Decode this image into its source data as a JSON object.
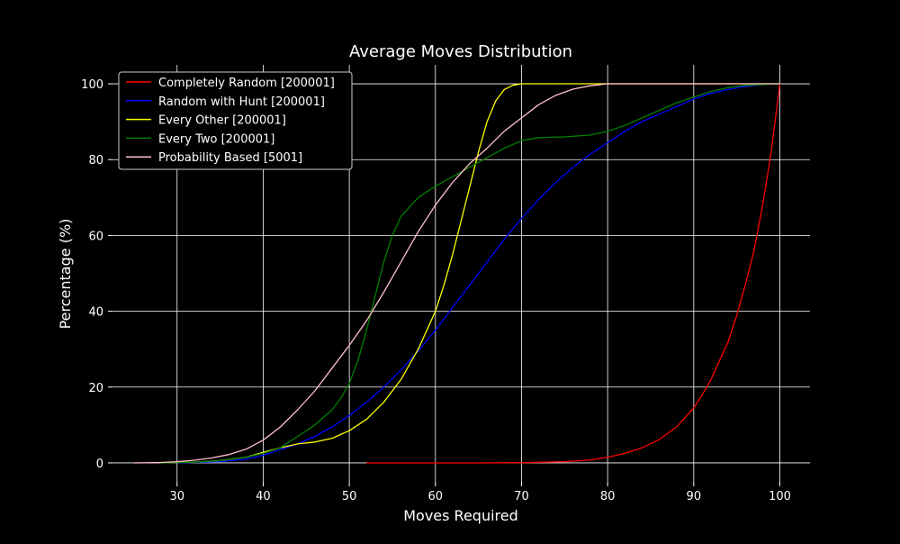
{
  "chart_data": {
    "type": "line",
    "title": "Average Moves Distribution",
    "xlabel": "Moves Required",
    "ylabel": "Percentage (%)",
    "xlim": [
      22.5,
      103.5
    ],
    "ylim": [
      -5,
      105
    ],
    "xticks": [
      30,
      40,
      50,
      60,
      70,
      80,
      90,
      100
    ],
    "yticks": [
      0,
      20,
      40,
      60,
      80,
      100
    ],
    "grid": true,
    "legend_position": "upper-left",
    "background": "#000000",
    "foreground": "#ffffff",
    "series": [
      {
        "name": "Completely Random [200001]",
        "color": "#ff0000",
        "points": [
          [
            52,
            0
          ],
          [
            60,
            0
          ],
          [
            65,
            0
          ],
          [
            70,
            0.05
          ],
          [
            75,
            0.3
          ],
          [
            78,
            0.8
          ],
          [
            80,
            1.5
          ],
          [
            82,
            2.5
          ],
          [
            84,
            4
          ],
          [
            86,
            6.2
          ],
          [
            88,
            9.5
          ],
          [
            89,
            12
          ],
          [
            90,
            14.5
          ],
          [
            91,
            18
          ],
          [
            92,
            22
          ],
          [
            93,
            27
          ],
          [
            94,
            32
          ],
          [
            95,
            39
          ],
          [
            96,
            47
          ],
          [
            97,
            56
          ],
          [
            98,
            68
          ],
          [
            99,
            82
          ],
          [
            100,
            100
          ]
        ]
      },
      {
        "name": "Random with Hunt [200001]",
        "color": "#0000ff",
        "points": [
          [
            30,
            0
          ],
          [
            35,
            0.3
          ],
          [
            38,
            1
          ],
          [
            40,
            2
          ],
          [
            42,
            3.5
          ],
          [
            44,
            5
          ],
          [
            46,
            7
          ],
          [
            48,
            9.5
          ],
          [
            50,
            12.5
          ],
          [
            52,
            16
          ],
          [
            54,
            20
          ],
          [
            56,
            24.5
          ],
          [
            58,
            29.5
          ],
          [
            60,
            35
          ],
          [
            62,
            41
          ],
          [
            64,
            47
          ],
          [
            66,
            53
          ],
          [
            68,
            59
          ],
          [
            70,
            64.5
          ],
          [
            72,
            69.5
          ],
          [
            74,
            74
          ],
          [
            76,
            78
          ],
          [
            78,
            81.5
          ],
          [
            80,
            84.5
          ],
          [
            82,
            87.5
          ],
          [
            84,
            90
          ],
          [
            86,
            92
          ],
          [
            88,
            94
          ],
          [
            90,
            96
          ],
          [
            92,
            97.5
          ],
          [
            94,
            98.5
          ],
          [
            96,
            99.3
          ],
          [
            98,
            99.8
          ],
          [
            100,
            100
          ]
        ]
      },
      {
        "name": "Every Other [200001]",
        "color": "#ffff00",
        "points": [
          [
            28,
            0
          ],
          [
            32,
            0.2
          ],
          [
            35,
            0.6
          ],
          [
            38,
            1.5
          ],
          [
            40,
            2.8
          ],
          [
            42,
            4
          ],
          [
            44,
            5
          ],
          [
            46,
            5.5
          ],
          [
            48,
            6.5
          ],
          [
            50,
            8.5
          ],
          [
            52,
            11.5
          ],
          [
            54,
            16
          ],
          [
            56,
            22
          ],
          [
            58,
            30
          ],
          [
            60,
            40
          ],
          [
            61,
            47
          ],
          [
            62,
            55
          ],
          [
            63,
            64
          ],
          [
            64,
            73
          ],
          [
            65,
            82
          ],
          [
            66,
            90
          ],
          [
            67,
            95.5
          ],
          [
            68,
            98.5
          ],
          [
            69,
            99.6
          ],
          [
            70,
            100
          ],
          [
            75,
            100
          ],
          [
            100,
            100
          ]
        ]
      },
      {
        "name": "Every Two [200001]",
        "color": "#008000",
        "points": [
          [
            28,
            0
          ],
          [
            32,
            0.2
          ],
          [
            35,
            0.6
          ],
          [
            38,
            1.5
          ],
          [
            40,
            2.5
          ],
          [
            42,
            4
          ],
          [
            44,
            7
          ],
          [
            46,
            10
          ],
          [
            48,
            14
          ],
          [
            49,
            17
          ],
          [
            50,
            21
          ],
          [
            51,
            27
          ],
          [
            52,
            35
          ],
          [
            53,
            44
          ],
          [
            54,
            53
          ],
          [
            55,
            60
          ],
          [
            56,
            65
          ],
          [
            58,
            70
          ],
          [
            60,
            73
          ],
          [
            62,
            75.5
          ],
          [
            64,
            78
          ],
          [
            66,
            80.5
          ],
          [
            68,
            83
          ],
          [
            70,
            85
          ],
          [
            72,
            85.8
          ],
          [
            75,
            86
          ],
          [
            78,
            86.5
          ],
          [
            80,
            87.5
          ],
          [
            82,
            89
          ],
          [
            84,
            91
          ],
          [
            86,
            93
          ],
          [
            88,
            95
          ],
          [
            90,
            96.5
          ],
          [
            92,
            98
          ],
          [
            94,
            99
          ],
          [
            96,
            99.6
          ],
          [
            100,
            100
          ]
        ]
      },
      {
        "name": "Probability Based [5001]",
        "color": "#ffc0cb",
        "points": [
          [
            25,
            0
          ],
          [
            28,
            0.1
          ],
          [
            30,
            0.3
          ],
          [
            32,
            0.7
          ],
          [
            34,
            1.3
          ],
          [
            36,
            2.2
          ],
          [
            38,
            3.6
          ],
          [
            40,
            6
          ],
          [
            42,
            9.5
          ],
          [
            44,
            14
          ],
          [
            46,
            19
          ],
          [
            48,
            25
          ],
          [
            50,
            31
          ],
          [
            52,
            37.5
          ],
          [
            54,
            45
          ],
          [
            56,
            53
          ],
          [
            58,
            61
          ],
          [
            60,
            68
          ],
          [
            62,
            74
          ],
          [
            64,
            79
          ],
          [
            66,
            83
          ],
          [
            68,
            87.5
          ],
          [
            70,
            91
          ],
          [
            72,
            94.5
          ],
          [
            74,
            97
          ],
          [
            76,
            98.6
          ],
          [
            78,
            99.5
          ],
          [
            80,
            100
          ],
          [
            100,
            100
          ]
        ]
      }
    ]
  }
}
